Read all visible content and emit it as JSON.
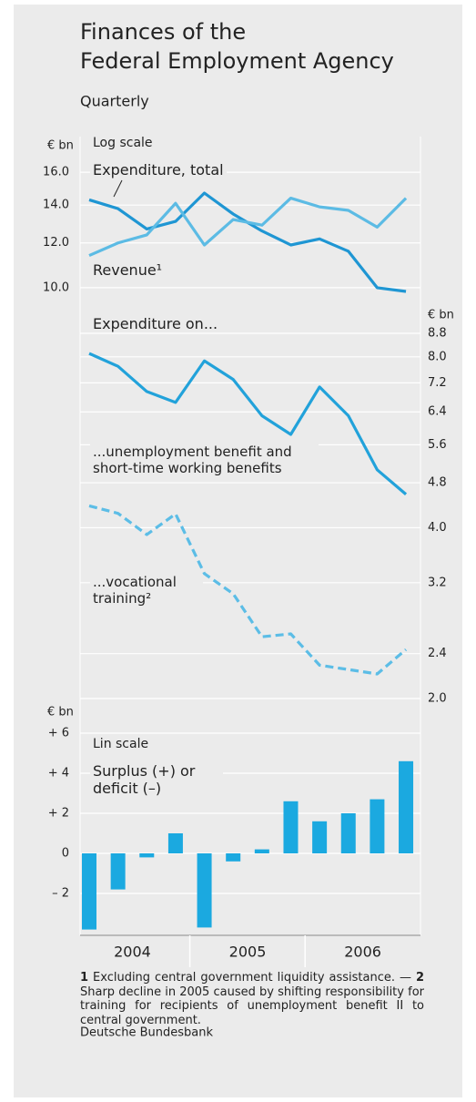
{
  "title": [
    "Finances of the",
    "Federal Employment Agency"
  ],
  "subtitle": "Quarterly",
  "year_labels": [
    "2004",
    "2005",
    "2006"
  ],
  "notes": [
    {
      "marker": "1",
      "text": "Excluding central government liquidity assistance. —"
    },
    {
      "marker": "2",
      "text": "Sharp decline in 2005 caused by shifting responsibility for training for recipients of unemployment benefit II to central government."
    }
  ],
  "source": "Deutsche Bundesbank",
  "chart_data": [
    {
      "type": "line",
      "log_scale": true,
      "y_label": "€ bn",
      "axis_side": "left",
      "grid": true,
      "annotations": [
        "Log scale"
      ],
      "categories": [
        null,
        null,
        null,
        null,
        null,
        null,
        null,
        null,
        null,
        null,
        null,
        null
      ],
      "ylim": [
        9.2,
        18.5
      ],
      "yticks": [
        {
          "value": 10,
          "label": "10.0"
        },
        {
          "value": 12,
          "label": "12.0"
        },
        {
          "value": 14,
          "label": "14.0"
        },
        {
          "value": 16,
          "label": "16.0"
        }
      ],
      "series": [
        {
          "name": "Expenditure, total",
          "color": "#1f96d3",
          "values": [
            14.3,
            13.8,
            12.7,
            13.1,
            14.7,
            13.5,
            12.6,
            11.9,
            12.2,
            11.6,
            10.0,
            9.85
          ]
        },
        {
          "name": "Revenue¹",
          "color": "#5cbbe4",
          "values": [
            11.4,
            12.0,
            12.4,
            14.1,
            11.9,
            13.2,
            12.9,
            14.4,
            13.9,
            13.7,
            12.8,
            14.4
          ]
        }
      ]
    },
    {
      "type": "line",
      "log_scale": true,
      "y_label": "€ bn",
      "axis_side": "right",
      "grid": true,
      "title": "Expenditure on...",
      "categories": [
        null,
        null,
        null,
        null,
        null,
        null,
        null,
        null,
        null,
        null,
        null,
        null
      ],
      "ylim": [
        1.9,
        9.2
      ],
      "yticks": [
        8.8,
        {
          "value": 8,
          "label": "8.0"
        },
        7.2,
        6.4,
        5.6,
        4.8,
        {
          "value": 4,
          "label": "4.0"
        },
        3.2,
        2.4,
        {
          "value": 2,
          "label": "2.0"
        }
      ],
      "series": [
        {
          "name": "...unemployment benefit and short-time working benefits",
          "color": "#22a2da",
          "dashed": false,
          "values": [
            8.11,
            7.7,
            6.95,
            6.65,
            7.87,
            7.3,
            6.3,
            5.84,
            7.08,
            6.3,
            5.06,
            4.58
          ]
        },
        {
          "name": "...vocational training²",
          "color": "#5cbde6",
          "dashed": true,
          "values": [
            4.37,
            4.24,
            3.89,
            4.23,
            3.32,
            3.06,
            2.57,
            2.6,
            2.29,
            2.25,
            2.21,
            2.44
          ]
        }
      ]
    },
    {
      "type": "bar",
      "log_scale": false,
      "y_label": "€ bn",
      "axis_side": "left",
      "grid": true,
      "annotations": [
        "Lin scale"
      ],
      "title": "Surplus (+) or deficit (–)",
      "categories": [
        null,
        null,
        null,
        null,
        null,
        null,
        null,
        null,
        null,
        null,
        null,
        null
      ],
      "color": "#1ba9e0",
      "ylim": [
        -4.1,
        7.5
      ],
      "yticks": [
        {
          "value": 6,
          "label": "+ 6"
        },
        {
          "value": 4,
          "label": "+ 4"
        },
        {
          "value": 2,
          "label": "+ 2"
        },
        0,
        {
          "value": -2,
          "label": "– 2"
        }
      ],
      "values": [
        -3.8,
        -1.8,
        -0.2,
        1.0,
        -3.7,
        -0.4,
        0.2,
        2.6,
        1.6,
        2.0,
        2.7,
        4.6
      ]
    }
  ]
}
